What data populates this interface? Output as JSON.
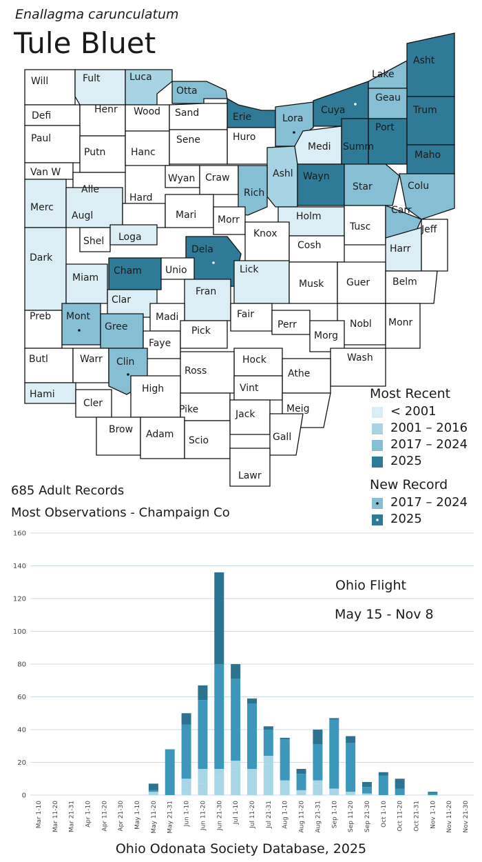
{
  "header": {
    "scientific_name": "Enallagma carunculatum",
    "common_name": "Tule Bluet"
  },
  "colors": {
    "pre2001": "#dceef5",
    "y2001_2016": "#a8d3e2",
    "y2017_2024": "#86bfd4",
    "y2025": "#2f7a96",
    "none": "#ffffff",
    "bar_light": "#a9d6e6",
    "bar_mid": "#3d97ba",
    "bar_dark": "#2b738f",
    "grid": "#c9dde3"
  },
  "map": {
    "counties": [
      {
        "name": "Will",
        "cat": "none",
        "nr": ""
      },
      {
        "name": "Fult",
        "cat": "pre2001",
        "nr": ""
      },
      {
        "name": "Luca",
        "cat": "y2001_2016",
        "nr": ""
      },
      {
        "name": "Otta",
        "cat": "y2017_2024",
        "nr": ""
      },
      {
        "name": "Erie",
        "cat": "y2025",
        "nr": ""
      },
      {
        "name": "Lora",
        "cat": "y2017_2024",
        "nr": "2017"
      },
      {
        "name": "Cuya",
        "cat": "y2025",
        "nr": "2025"
      },
      {
        "name": "Lake",
        "cat": "y2017_2024",
        "nr": ""
      },
      {
        "name": "Asht",
        "cat": "y2025",
        "nr": ""
      },
      {
        "name": "Geau",
        "cat": "y2017_2024",
        "nr": ""
      },
      {
        "name": "Defi",
        "cat": "none",
        "nr": ""
      },
      {
        "name": "Henr",
        "cat": "none",
        "nr": ""
      },
      {
        "name": "Wood",
        "cat": "none",
        "nr": ""
      },
      {
        "name": "Sand",
        "cat": "none",
        "nr": ""
      },
      {
        "name": "Huro",
        "cat": "none",
        "nr": ""
      },
      {
        "name": "Medi",
        "cat": "pre2001",
        "nr": ""
      },
      {
        "name": "Summ",
        "cat": "y2025",
        "nr": ""
      },
      {
        "name": "Port",
        "cat": "y2025",
        "nr": ""
      },
      {
        "name": "Trum",
        "cat": "y2025",
        "nr": ""
      },
      {
        "name": "Paul",
        "cat": "none",
        "nr": ""
      },
      {
        "name": "Putn",
        "cat": "none",
        "nr": ""
      },
      {
        "name": "Hanc",
        "cat": "none",
        "nr": ""
      },
      {
        "name": "Sene",
        "cat": "none",
        "nr": ""
      },
      {
        "name": "Ashl",
        "cat": "y2001_2016",
        "nr": ""
      },
      {
        "name": "Wayn",
        "cat": "y2025",
        "nr": ""
      },
      {
        "name": "Star",
        "cat": "y2017_2024",
        "nr": ""
      },
      {
        "name": "Maho",
        "cat": "y2025",
        "nr": ""
      },
      {
        "name": "Van W",
        "cat": "none",
        "nr": ""
      },
      {
        "name": "Alle",
        "cat": "none",
        "nr": ""
      },
      {
        "name": "Wyan",
        "cat": "none",
        "nr": ""
      },
      {
        "name": "Craw",
        "cat": "none",
        "nr": ""
      },
      {
        "name": "Rich",
        "cat": "y2017_2024",
        "nr": ""
      },
      {
        "name": "Colu",
        "cat": "y2017_2024",
        "nr": ""
      },
      {
        "name": "Merc",
        "cat": "pre2001",
        "nr": ""
      },
      {
        "name": "Augl",
        "cat": "pre2001",
        "nr": ""
      },
      {
        "name": "Hard",
        "cat": "none",
        "nr": ""
      },
      {
        "name": "Mari",
        "cat": "none",
        "nr": ""
      },
      {
        "name": "Morr",
        "cat": "none",
        "nr": ""
      },
      {
        "name": "Holm",
        "cat": "pre2001",
        "nr": ""
      },
      {
        "name": "Tusc",
        "cat": "none",
        "nr": ""
      },
      {
        "name": "Carr",
        "cat": "y2017_2024",
        "nr": ""
      },
      {
        "name": "Shel",
        "cat": "none",
        "nr": ""
      },
      {
        "name": "Loga",
        "cat": "pre2001",
        "nr": ""
      },
      {
        "name": "Dela",
        "cat": "y2025",
        "nr": "2025"
      },
      {
        "name": "Knox",
        "cat": "none",
        "nr": ""
      },
      {
        "name": "Cosh",
        "cat": "none",
        "nr": ""
      },
      {
        "name": "Harr",
        "cat": "pre2001",
        "nr": ""
      },
      {
        "name": "Jeff",
        "cat": "none",
        "nr": ""
      },
      {
        "name": "Dark",
        "cat": "pre2001",
        "nr": ""
      },
      {
        "name": "Miam",
        "cat": "pre2001",
        "nr": ""
      },
      {
        "name": "Cham",
        "cat": "y2025",
        "nr": ""
      },
      {
        "name": "Unio",
        "cat": "none",
        "nr": ""
      },
      {
        "name": "Lick",
        "cat": "pre2001",
        "nr": ""
      },
      {
        "name": "Musk",
        "cat": "none",
        "nr": ""
      },
      {
        "name": "Guer",
        "cat": "none",
        "nr": ""
      },
      {
        "name": "Belm",
        "cat": "none",
        "nr": ""
      },
      {
        "name": "Clar",
        "cat": "pre2001",
        "nr": ""
      },
      {
        "name": "Fran",
        "cat": "pre2001",
        "nr": ""
      },
      {
        "name": "Preb",
        "cat": "none",
        "nr": ""
      },
      {
        "name": "Mont",
        "cat": "y2017_2024",
        "nr": "2017"
      },
      {
        "name": "Gree",
        "cat": "y2017_2024",
        "nr": ""
      },
      {
        "name": "Madi",
        "cat": "none",
        "nr": ""
      },
      {
        "name": "Fair",
        "cat": "none",
        "nr": ""
      },
      {
        "name": "Perr",
        "cat": "none",
        "nr": ""
      },
      {
        "name": "Nobl",
        "cat": "none",
        "nr": ""
      },
      {
        "name": "Monr",
        "cat": "none",
        "nr": ""
      },
      {
        "name": "Faye",
        "cat": "none",
        "nr": ""
      },
      {
        "name": "Pick",
        "cat": "none",
        "nr": ""
      },
      {
        "name": "Morg",
        "cat": "none",
        "nr": ""
      },
      {
        "name": "Butl",
        "cat": "none",
        "nr": ""
      },
      {
        "name": "Warr",
        "cat": "none",
        "nr": ""
      },
      {
        "name": "Clin",
        "cat": "y2017_2024",
        "nr": "2017"
      },
      {
        "name": "Hock",
        "cat": "none",
        "nr": ""
      },
      {
        "name": "Wash",
        "cat": "none",
        "nr": ""
      },
      {
        "name": "Ross",
        "cat": "none",
        "nr": ""
      },
      {
        "name": "Athe",
        "cat": "none",
        "nr": ""
      },
      {
        "name": "High",
        "cat": "none",
        "nr": ""
      },
      {
        "name": "Vint",
        "cat": "none",
        "nr": ""
      },
      {
        "name": "Hami",
        "cat": "pre2001",
        "nr": ""
      },
      {
        "name": "Cler",
        "cat": "none",
        "nr": ""
      },
      {
        "name": "Pike",
        "cat": "none",
        "nr": ""
      },
      {
        "name": "Jack",
        "cat": "none",
        "nr": ""
      },
      {
        "name": "Meig",
        "cat": "none",
        "nr": ""
      },
      {
        "name": "Brow",
        "cat": "none",
        "nr": ""
      },
      {
        "name": "Adam",
        "cat": "none",
        "nr": ""
      },
      {
        "name": "Scio",
        "cat": "none",
        "nr": ""
      },
      {
        "name": "Gall",
        "cat": "none",
        "nr": ""
      },
      {
        "name": "Lawr",
        "cat": "none",
        "nr": ""
      }
    ]
  },
  "legend": {
    "most_recent_title": "Most Recent",
    "items": [
      "< 2001",
      "2001 – 2016",
      "2017 – 2024",
      "2025"
    ],
    "new_record_title": "New Record",
    "new_items": [
      "2017 – 2024",
      "2025"
    ]
  },
  "stats": {
    "records": "685 Adult Records",
    "most_obs": "Most Observations - Champaign Co"
  },
  "chart_data": {
    "type": "bar",
    "stacked": true,
    "categories": [
      "Mar 1-10",
      "Mar 11-20",
      "Mar 21-31",
      "Apr 1-10",
      "Apr 11-20",
      "Apr 21-30",
      "May 1-10",
      "May 11-20",
      "May 21-31",
      "Jun 1-10",
      "Jun 11-20",
      "Jun 21-30",
      "Jul 1-10",
      "Jul 11-20",
      "Jul 21-31",
      "Aug 1-10",
      "Aug 11-20",
      "Aug 21-31",
      "Sep 1-10",
      "Sep 11-20",
      "Sep 21-30",
      "Oct 1-10",
      "Oct 11-20",
      "Oct 21-31",
      "Nov 1-10",
      "Nov 11-20",
      "Nov 21-30"
    ],
    "series": [
      {
        "name": "Before 2025",
        "values": [
          0,
          0,
          0,
          0,
          0,
          0,
          0,
          0,
          0,
          1,
          7,
          11,
          15,
          12,
          19,
          8,
          3,
          7,
          3,
          2,
          1,
          0,
          0,
          0,
          0,
          0,
          0
        ]
      },
      {
        "name": "2025 Bright",
        "values": [
          0,
          0,
          0,
          0,
          0,
          0,
          0,
          2,
          0,
          9,
          9,
          5,
          6,
          4,
          5,
          1,
          0,
          2,
          1,
          0,
          0,
          0,
          0,
          0,
          0,
          0,
          0
        ]
      },
      {
        "name": "2025 Main",
        "values": [
          0,
          0,
          0,
          0,
          0,
          0,
          0,
          1,
          28,
          33,
          42,
          64,
          50,
          40,
          16,
          25,
          10,
          22,
          42,
          30,
          4,
          12,
          4,
          0,
          1,
          0,
          0
        ]
      },
      {
        "name": "2025 Dark",
        "values": [
          0,
          0,
          0,
          0,
          0,
          0,
          0,
          4,
          0,
          7,
          9,
          56,
          9,
          3,
          2,
          1,
          3,
          9,
          1,
          4,
          3,
          2,
          6,
          0,
          1,
          0,
          0
        ]
      }
    ],
    "ylim": [
      0,
      160
    ],
    "yticks": [
      0,
      20,
      40,
      60,
      80,
      100,
      120,
      140,
      160
    ],
    "grid": true,
    "annotations": [
      "Ohio Flight",
      "May 15 - Nov 8"
    ],
    "title": "",
    "xlabel": "",
    "ylabel": ""
  },
  "footer": "Ohio Odonata Society Database, 2025"
}
